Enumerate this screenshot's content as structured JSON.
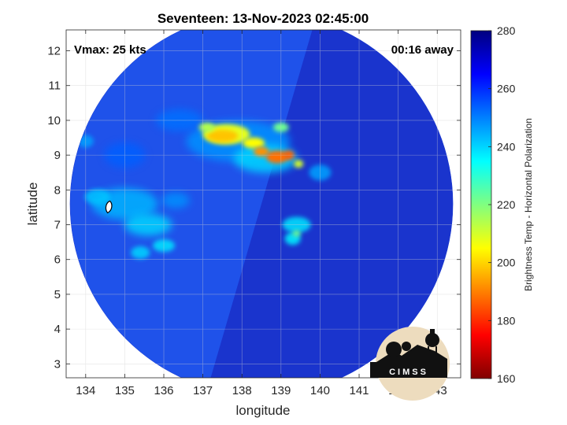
{
  "chart_data": {
    "type": "heatmap",
    "title": "Seventeen: 13-Nov-2023 02:45:00",
    "xlabel": "longitude",
    "ylabel": "latitude",
    "xlim": [
      133.5,
      143.6
    ],
    "ylim": [
      2.6,
      12.6
    ],
    "xticks": [
      134,
      135,
      136,
      137,
      138,
      139,
      140,
      141,
      142,
      143
    ],
    "yticks": [
      3,
      4,
      5,
      6,
      7,
      8,
      9,
      10,
      11,
      12
    ],
    "grid": true,
    "annotations": {
      "vmax": "Vmax: 25 kts",
      "time_away": "00:16 away"
    },
    "colorbar": {
      "label": "Brightness Temp - Horizontal Polarization",
      "range": [
        160,
        280
      ],
      "ticks": [
        160,
        180,
        200,
        220,
        240,
        260,
        280
      ],
      "colors": [
        "#800000",
        "#ff0000",
        "#ff8000",
        "#ffff00",
        "#80ff80",
        "#00ffff",
        "#0080ff",
        "#0000ff",
        "#000080"
      ]
    },
    "swath": {
      "center": [
        138.5,
        7.6
      ],
      "radius_deg": 4.9
    },
    "features": [
      {
        "name": "cold-core-north",
        "lon": 137.6,
        "lat": 9.6,
        "temp": 200
      },
      {
        "name": "cold-core-center",
        "lon": 138.9,
        "lat": 9.0,
        "temp": 190
      },
      {
        "name": "west-cloud-band",
        "lon": 135.2,
        "lat": 7.4,
        "temp": 245
      },
      {
        "name": "southeast-cell",
        "lon": 139.2,
        "lat": 6.8,
        "temp": 238
      }
    ],
    "storm_marker": {
      "lon": 134.6,
      "lat": 7.5
    }
  },
  "logo": {
    "text": "CIMSS"
  }
}
